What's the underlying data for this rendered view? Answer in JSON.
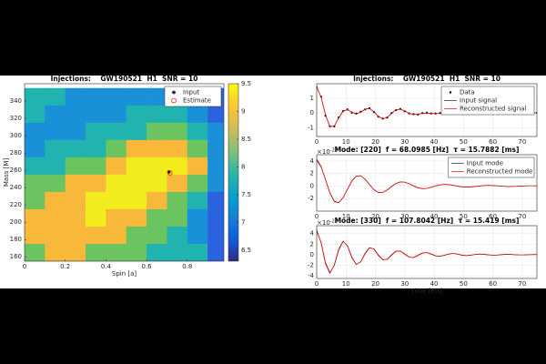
{
  "chart_data": [
    {
      "type": "contour",
      "title": "Injections:    GW190521  H1  SNR = 10",
      "xlabel": "Spin [a]",
      "ylabel": "Mass [M]",
      "x": [
        0.05,
        0.15,
        0.25,
        0.35,
        0.45,
        0.55,
        0.65,
        0.75,
        0.85,
        0.95
      ],
      "y": [
        345,
        325,
        305,
        285,
        265,
        245,
        225,
        205,
        185,
        165
      ],
      "z": [
        [
          7.8,
          7.6,
          7.4,
          7.2,
          7.2,
          7.2,
          7.3,
          7.2,
          7.0,
          6.6
        ],
        [
          7.5,
          7.3,
          7.2,
          7.3,
          7.4,
          7.5,
          7.6,
          7.6,
          7.4,
          6.8
        ],
        [
          7.3,
          7.3,
          7.4,
          7.5,
          7.7,
          7.9,
          8.1,
          8.2,
          7.8,
          7.0
        ],
        [
          7.4,
          7.5,
          7.7,
          7.9,
          8.2,
          8.5,
          8.7,
          8.8,
          8.3,
          7.3
        ],
        [
          7.7,
          7.9,
          8.1,
          8.4,
          8.7,
          9.1,
          9.3,
          9.2,
          8.5,
          7.4
        ],
        [
          8.0,
          8.3,
          8.6,
          8.9,
          9.2,
          9.3,
          9.2,
          8.9,
          8.0,
          7.0
        ],
        [
          8.4,
          8.7,
          8.9,
          9.1,
          9.1,
          9.0,
          8.8,
          8.4,
          7.5,
          6.7
        ],
        [
          8.6,
          8.8,
          8.9,
          9.0,
          8.9,
          8.7,
          8.4,
          8.0,
          7.2,
          6.5
        ],
        [
          8.5,
          8.7,
          8.7,
          8.7,
          8.6,
          8.3,
          8.0,
          7.7,
          7.3,
          6.6
        ],
        [
          8.3,
          8.5,
          8.5,
          8.4,
          8.2,
          8.0,
          7.8,
          7.9,
          7.6,
          6.9
        ]
      ],
      "levels": [
        6.5,
        7,
        7.5,
        8,
        8.5,
        9
      ],
      "level_colors": [
        "#3a2ea0",
        "#2a62e0",
        "#1a90d8",
        "#21b3b0",
        "#6cc460",
        "#f8b93a",
        "#f2ec1f"
      ],
      "colorbar_colors": [
        "#352a87",
        "#0f5cdd",
        "#1481d6",
        "#06a4ca",
        "#2eb7a4",
        "#87bf77",
        "#d1bb59",
        "#fec832",
        "#f9fb0e"
      ],
      "clim": [
        6.3,
        9.5
      ],
      "cticks": [
        6.5,
        7,
        7.5,
        8,
        8.5,
        9,
        9.5
      ],
      "xlim": [
        0,
        0.98
      ],
      "xticks": [
        0,
        0.2,
        0.4,
        0.6,
        0.8
      ],
      "ylim": [
        155,
        360
      ],
      "yticks": [
        160,
        180,
        200,
        220,
        240,
        260,
        280,
        300,
        320,
        340
      ],
      "legend": "northeast",
      "series": [
        {
          "name": "Input",
          "color": "#000000",
          "marker": "star",
          "x": [
            0.71
          ],
          "values": [
            258
          ]
        },
        {
          "name": "Estimate",
          "color": "#ff0000",
          "marker": "circle",
          "x": [
            0.715
          ],
          "values": [
            257
          ]
        }
      ]
    },
    {
      "type": "line",
      "title": "Injections:    GW190521  H1  SNR = 10",
      "grid": true,
      "legend": "northeast",
      "x": [
        0,
        1.5,
        3,
        4.5,
        6,
        7.5,
        9,
        10.5,
        12,
        13.5,
        15,
        16.5,
        18,
        19.5,
        21,
        22.5,
        24,
        25.5,
        27,
        28.5,
        30,
        31.5,
        33,
        34.5,
        36,
        37.5,
        39,
        40.5,
        42,
        43.5,
        45,
        46.5,
        48,
        49.5,
        51,
        52.5,
        54,
        55.5,
        57,
        58.5,
        60,
        61.5,
        63,
        64.5,
        66,
        67.5,
        69,
        70.5,
        72,
        73.5,
        75
      ],
      "xlim": [
        0,
        75
      ],
      "xticks": [
        0,
        10,
        20,
        30,
        40,
        50,
        60,
        70
      ],
      "ylim": [
        -1.6,
        2
      ],
      "yticks": [
        -1,
        0,
        1
      ],
      "series": [
        {
          "name": "Data",
          "color": "#000000",
          "marker": "dot",
          "values": [
            1.75,
            1.12,
            -0.18,
            -0.9,
            -0.91,
            -0.3,
            0.13,
            0.25,
            0.03,
            -0.04,
            0.09,
            0.25,
            0.33,
            0.07,
            -0.25,
            -0.38,
            -0.31,
            0.0,
            0.2,
            0.28,
            0.12,
            -0.03,
            -0.08,
            -0.1,
            0.0,
            0.02,
            -0.03,
            -0.03,
            0.0,
            0.04,
            0.07,
            0.08,
            0.0,
            -0.06,
            -0.06,
            -0.05,
            0.01,
            0.02,
            0.04,
            0.0,
            0.01,
            -0.02,
            0.01,
            0.0,
            -0.01,
            -0.02,
            0.0,
            0.01,
            0.0,
            0.02,
            0.01
          ]
        },
        {
          "name": "Input signal",
          "color": "#222222",
          "values": [
            1.8,
            1.08,
            -0.14,
            -0.93,
            -0.88,
            -0.33,
            0.15,
            0.23,
            0.05,
            -0.06,
            0.07,
            0.27,
            0.31,
            0.09,
            -0.23,
            -0.4,
            -0.3,
            -0.02,
            0.22,
            0.26,
            0.14,
            -0.02,
            -0.1,
            -0.08,
            -0.02,
            0.0,
            -0.02,
            -0.04,
            -0.02,
            0.03,
            0.08,
            0.07,
            0.01,
            -0.05,
            -0.07,
            -0.04,
            0.0,
            0.03,
            0.03,
            0.01,
            0.0,
            -0.01,
            0.0,
            0.0,
            0.0,
            -0.01,
            -0.01,
            0.0,
            0.01,
            0.02,
            0.01
          ]
        },
        {
          "name": "Reconstructed signal",
          "color": "#ff0000",
          "values": [
            1.76,
            1.1,
            -0.12,
            -0.91,
            -0.89,
            -0.35,
            0.13,
            0.24,
            0.06,
            -0.05,
            0.06,
            0.26,
            0.31,
            0.1,
            -0.22,
            -0.39,
            -0.31,
            -0.03,
            0.21,
            0.26,
            0.15,
            -0.01,
            -0.1,
            -0.09,
            -0.02,
            0.0,
            -0.02,
            -0.04,
            -0.02,
            0.03,
            0.07,
            0.07,
            0.01,
            -0.05,
            -0.07,
            -0.04,
            0.0,
            0.03,
            0.03,
            0.01,
            0.0,
            -0.01,
            0.0,
            0.0,
            0.0,
            -0.01,
            -0.01,
            0.0,
            0.01,
            0.02,
            0.01
          ]
        }
      ]
    },
    {
      "type": "line",
      "title": "Mode: [220]  f = 68.0985 [Hz]  τ = 15.7882 [ms]",
      "grid": true,
      "legend": "northeast",
      "exponent": {
        "base": "×10",
        "power": "-22"
      },
      "x": [
        0,
        1.5,
        3,
        4.5,
        6,
        7.5,
        9,
        10.5,
        12,
        13.5,
        15,
        16.5,
        18,
        19.5,
        21,
        22.5,
        24,
        25.5,
        27,
        28.5,
        30,
        31.5,
        33,
        34.5,
        36,
        37.5,
        39,
        40.5,
        42,
        43.5,
        45,
        46.5,
        48,
        49.5,
        51,
        52.5,
        54,
        55.5,
        57,
        58.5,
        60,
        61.5,
        63,
        64.5,
        66,
        67.5,
        69,
        70.5,
        72,
        73.5,
        75
      ],
      "xlim": [
        0,
        75
      ],
      "xticks": [
        0,
        10,
        20,
        30,
        40,
        50,
        60,
        70
      ],
      "ylim": [
        -4,
        5
      ],
      "yticks": [
        -2,
        0,
        2,
        4
      ],
      "series": [
        {
          "name": "Input mode",
          "color": "#222222",
          "values": [
            4.3,
            3.13,
            1.01,
            -1.13,
            -2.47,
            -2.67,
            -1.84,
            -0.48,
            0.83,
            1.6,
            1.65,
            1.08,
            0.21,
            -0.59,
            -1.03,
            -1.01,
            -0.63,
            -0.07,
            0.41,
            0.66,
            0.62,
            0.36,
            0.01,
            -0.28,
            -0.42,
            -0.38,
            -0.2,
            0.02,
            0.19,
            0.27,
            0.23,
            0.11,
            -0.03,
            -0.13,
            -0.17,
            -0.14,
            -0.06,
            0.02,
            0.09,
            0.11,
            0.08,
            0.03,
            -0.02,
            -0.06,
            -0.07,
            -0.05,
            -0.02,
            0.02,
            0.04,
            0.04,
            0.03
          ]
        },
        {
          "name": "Reconstructed mode",
          "color": "#ff0000",
          "values": [
            4.1,
            3.05,
            1.05,
            -1.05,
            -2.4,
            -2.63,
            -1.85,
            -0.52,
            0.78,
            1.56,
            1.63,
            1.09,
            0.24,
            -0.56,
            -1.01,
            -1.0,
            -0.64,
            -0.09,
            0.39,
            0.65,
            0.62,
            0.37,
            0.03,
            -0.27,
            -0.41,
            -0.38,
            -0.21,
            0.01,
            0.18,
            0.26,
            0.23,
            0.12,
            -0.02,
            -0.12,
            -0.17,
            -0.14,
            -0.07,
            0.01,
            0.08,
            0.11,
            0.09,
            0.04,
            -0.02,
            -0.05,
            -0.07,
            -0.05,
            -0.02,
            0.01,
            0.04,
            0.04,
            0.03
          ]
        }
      ]
    },
    {
      "type": "line",
      "title": "Mode: [330]  f = 107.8042 [Hz]  τ = 15.419 [ms]",
      "grid": true,
      "xlabel": "Time [ms]",
      "exponent": {
        "base": "×10",
        "power": "-22"
      },
      "x": [
        0,
        1.5,
        3,
        4.5,
        6,
        7.5,
        9,
        10.5,
        12,
        13.5,
        15,
        16.5,
        18,
        19.5,
        21,
        22.5,
        24,
        25.5,
        27,
        28.5,
        30,
        31.5,
        33,
        34.5,
        36,
        37.5,
        39,
        40.5,
        42,
        43.5,
        45,
        46.5,
        48,
        49.5,
        51,
        52.5,
        54,
        55.5,
        57,
        58.5,
        60,
        61.5,
        63,
        64.5,
        66,
        67.5,
        69,
        70.5,
        72,
        73.5,
        75
      ],
      "xlim": [
        0,
        75
      ],
      "xticks": [
        0,
        10,
        20,
        30,
        40,
        50,
        60,
        70
      ],
      "ylim": [
        -4.5,
        5.5
      ],
      "yticks": [
        -4,
        -2,
        0,
        2,
        4
      ],
      "series": [
        {
          "name": "Input mode",
          "color": "#222222",
          "values": [
            4.7,
            2.25,
            -1.72,
            -3.5,
            -1.94,
            1.03,
            2.58,
            1.61,
            -0.58,
            -1.88,
            -1.31,
            0.29,
            1.36,
            1.06,
            -0.1,
            -0.98,
            -0.85,
            -0.01,
            0.69,
            0.66,
            0.07,
            -0.48,
            -0.52,
            -0.1,
            0.33,
            0.4,
            0.11,
            -0.23,
            -0.3,
            -0.1,
            0.15,
            0.23,
            0.1,
            -0.1,
            -0.17,
            -0.08,
            0.06,
            0.13,
            0.07,
            -0.04,
            -0.09,
            -0.06,
            0.02,
            0.07,
            0.05,
            -0.01,
            -0.05,
            -0.04,
            0.0,
            0.04,
            0.03
          ]
        },
        {
          "name": "Reconstructed mode",
          "color": "#ff0000",
          "values": [
            4.45,
            2.4,
            -1.5,
            -3.35,
            -2.05,
            0.85,
            2.5,
            1.7,
            -0.45,
            -1.82,
            -1.38,
            0.18,
            1.3,
            1.12,
            0.0,
            -0.93,
            -0.9,
            -0.1,
            0.64,
            0.7,
            0.14,
            -0.44,
            -0.55,
            -0.16,
            0.29,
            0.41,
            0.16,
            -0.2,
            -0.31,
            -0.14,
            0.12,
            0.23,
            0.13,
            -0.07,
            -0.17,
            -0.1,
            0.04,
            0.12,
            0.09,
            -0.02,
            -0.09,
            -0.07,
            0.0,
            0.06,
            0.06,
            0.01,
            -0.04,
            -0.05,
            -0.01,
            0.03,
            0.04
          ]
        }
      ]
    }
  ]
}
